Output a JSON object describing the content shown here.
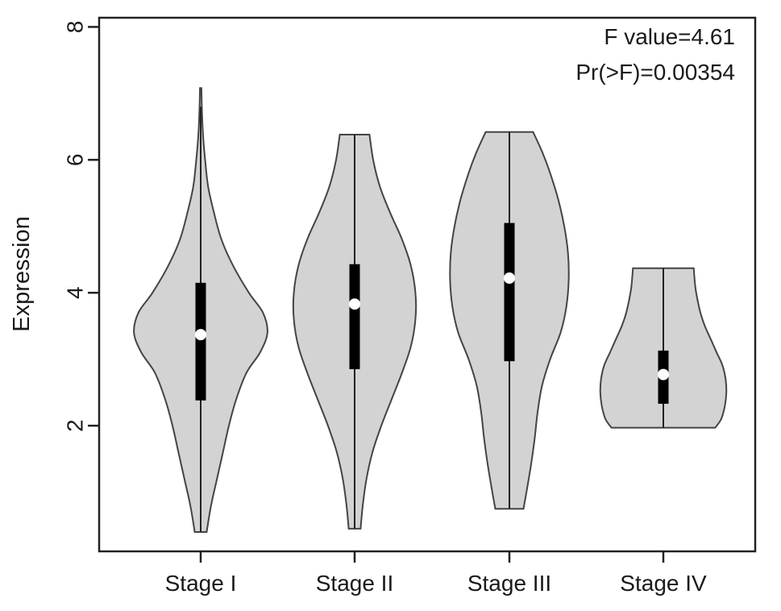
{
  "chart_data": {
    "type": "violin",
    "title": "",
    "xlabel": "",
    "ylabel": "Expression",
    "ylim": [
      0,
      8
    ],
    "yticks": [
      2,
      4,
      6,
      8
    ],
    "categories": [
      "Stage I",
      "Stage II",
      "Stage III",
      "Stage IV"
    ],
    "annotations": [
      "F value=4.61",
      "Pr(>F)=0.00354"
    ],
    "violin_fill": "#d3d3d3",
    "violins": [
      {
        "category": "Stage I",
        "min": 0.4,
        "max": 7.08,
        "q1": 2.38,
        "median": 3.37,
        "q3": 4.15,
        "whisker_high": 6.8,
        "density": [
          [
            0.4,
            0.08
          ],
          [
            0.8,
            0.14
          ],
          [
            1.2,
            0.22
          ],
          [
            1.6,
            0.3
          ],
          [
            2.0,
            0.38
          ],
          [
            2.4,
            0.48
          ],
          [
            2.8,
            0.62
          ],
          [
            3.1,
            0.8
          ],
          [
            3.4,
            0.9
          ],
          [
            3.7,
            0.84
          ],
          [
            4.0,
            0.65
          ],
          [
            4.4,
            0.44
          ],
          [
            4.8,
            0.28
          ],
          [
            5.2,
            0.18
          ],
          [
            5.6,
            0.1
          ],
          [
            6.0,
            0.06
          ],
          [
            6.4,
            0.03
          ],
          [
            6.8,
            0.015
          ],
          [
            7.08,
            0.01
          ]
        ]
      },
      {
        "category": "Stage II",
        "min": 0.45,
        "max": 6.38,
        "q1": 2.85,
        "median": 3.83,
        "q3": 4.43,
        "whisker_high": 6.38,
        "density": [
          [
            0.45,
            0.08
          ],
          [
            0.8,
            0.11
          ],
          [
            1.2,
            0.16
          ],
          [
            1.6,
            0.24
          ],
          [
            2.0,
            0.36
          ],
          [
            2.4,
            0.5
          ],
          [
            2.8,
            0.64
          ],
          [
            3.2,
            0.76
          ],
          [
            3.6,
            0.82
          ],
          [
            4.0,
            0.82
          ],
          [
            4.4,
            0.76
          ],
          [
            4.8,
            0.64
          ],
          [
            5.2,
            0.48
          ],
          [
            5.6,
            0.34
          ],
          [
            6.0,
            0.25
          ],
          [
            6.38,
            0.2
          ]
        ]
      },
      {
        "category": "Stage III",
        "min": 0.75,
        "max": 6.42,
        "q1": 2.97,
        "median": 4.22,
        "q3": 5.05,
        "whisker_high": 6.42,
        "density": [
          [
            0.75,
            0.19
          ],
          [
            1.0,
            0.23
          ],
          [
            1.4,
            0.29
          ],
          [
            1.8,
            0.34
          ],
          [
            2.2,
            0.38
          ],
          [
            2.6,
            0.44
          ],
          [
            3.0,
            0.55
          ],
          [
            3.4,
            0.69
          ],
          [
            3.8,
            0.77
          ],
          [
            4.2,
            0.8
          ],
          [
            4.6,
            0.79
          ],
          [
            5.0,
            0.74
          ],
          [
            5.4,
            0.66
          ],
          [
            5.8,
            0.55
          ],
          [
            6.1,
            0.45
          ],
          [
            6.42,
            0.32
          ]
        ]
      },
      {
        "category": "Stage IV",
        "min": 1.97,
        "max": 4.37,
        "q1": 2.33,
        "median": 2.77,
        "q3": 3.13,
        "whisker_high": 4.37,
        "density": [
          [
            1.97,
            0.7
          ],
          [
            2.1,
            0.78
          ],
          [
            2.3,
            0.83
          ],
          [
            2.5,
            0.85
          ],
          [
            2.7,
            0.84
          ],
          [
            2.9,
            0.8
          ],
          [
            3.1,
            0.72
          ],
          [
            3.3,
            0.64
          ],
          [
            3.5,
            0.56
          ],
          [
            3.7,
            0.5
          ],
          [
            3.9,
            0.46
          ],
          [
            4.1,
            0.43
          ],
          [
            4.37,
            0.41
          ]
        ]
      }
    ]
  }
}
